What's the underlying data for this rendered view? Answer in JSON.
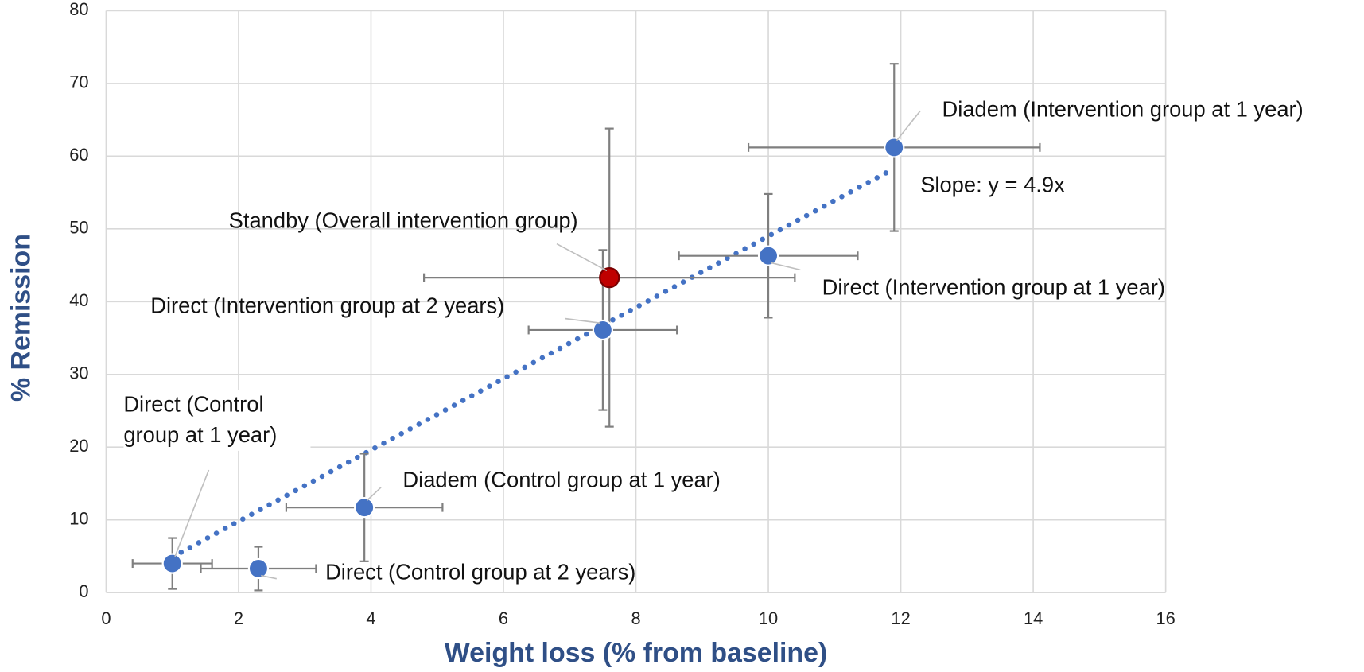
{
  "chart_data": {
    "type": "scatter",
    "x_label": "Weight loss (% from baseline)",
    "y_label": "% Remission",
    "xlim": [
      0,
      16
    ],
    "xticks": [
      0,
      2,
      4,
      6,
      8,
      10,
      12,
      14,
      16
    ],
    "ylim": [
      0,
      80
    ],
    "yticks": [
      0,
      10,
      20,
      30,
      40,
      50,
      60,
      70,
      80
    ],
    "grid": true,
    "points": [
      {
        "label": "Direct (Control group at 1 year)",
        "x": 1.0,
        "y": 4.0,
        "xerr": 0.6,
        "yerr": 3.5,
        "color": "#4472c4"
      },
      {
        "label": "Direct (Control group at 2 years)",
        "x": 2.3,
        "y": 3.3,
        "xerr": 0.87,
        "yerr": 3.0,
        "color": "#4472c4"
      },
      {
        "label": "Diadem (Control group at 1 year)",
        "x": 3.9,
        "y": 11.7,
        "xerr": 1.18,
        "yerr": 7.4,
        "color": "#4472c4"
      },
      {
        "label": "Direct (Intervention group at 2 years)",
        "x": 7.5,
        "y": 36.1,
        "xerr": 1.12,
        "yerr": 11.0,
        "color": "#4472c4"
      },
      {
        "label": "Standby (Overall intervention group)",
        "x": 7.6,
        "y": 43.3,
        "xerr": 2.8,
        "yerr": 20.5,
        "color": "#c00000"
      },
      {
        "label": "Direct (Intervention group at 1 year)",
        "x": 10.0,
        "y": 46.3,
        "xerr": 1.35,
        "yerr": 8.5,
        "color": "#4472c4"
      },
      {
        "label": "Diadem (Intervention group at 1 year)",
        "x": 11.9,
        "y": 61.2,
        "xerr": 2.2,
        "yerr": 11.5,
        "color": "#4472c4"
      }
    ],
    "trendline": {
      "label": "Slope: y = 4.9x",
      "slope": 4.9,
      "x_start": 1.0,
      "x_end": 11.9,
      "color": "#4472c4"
    }
  }
}
